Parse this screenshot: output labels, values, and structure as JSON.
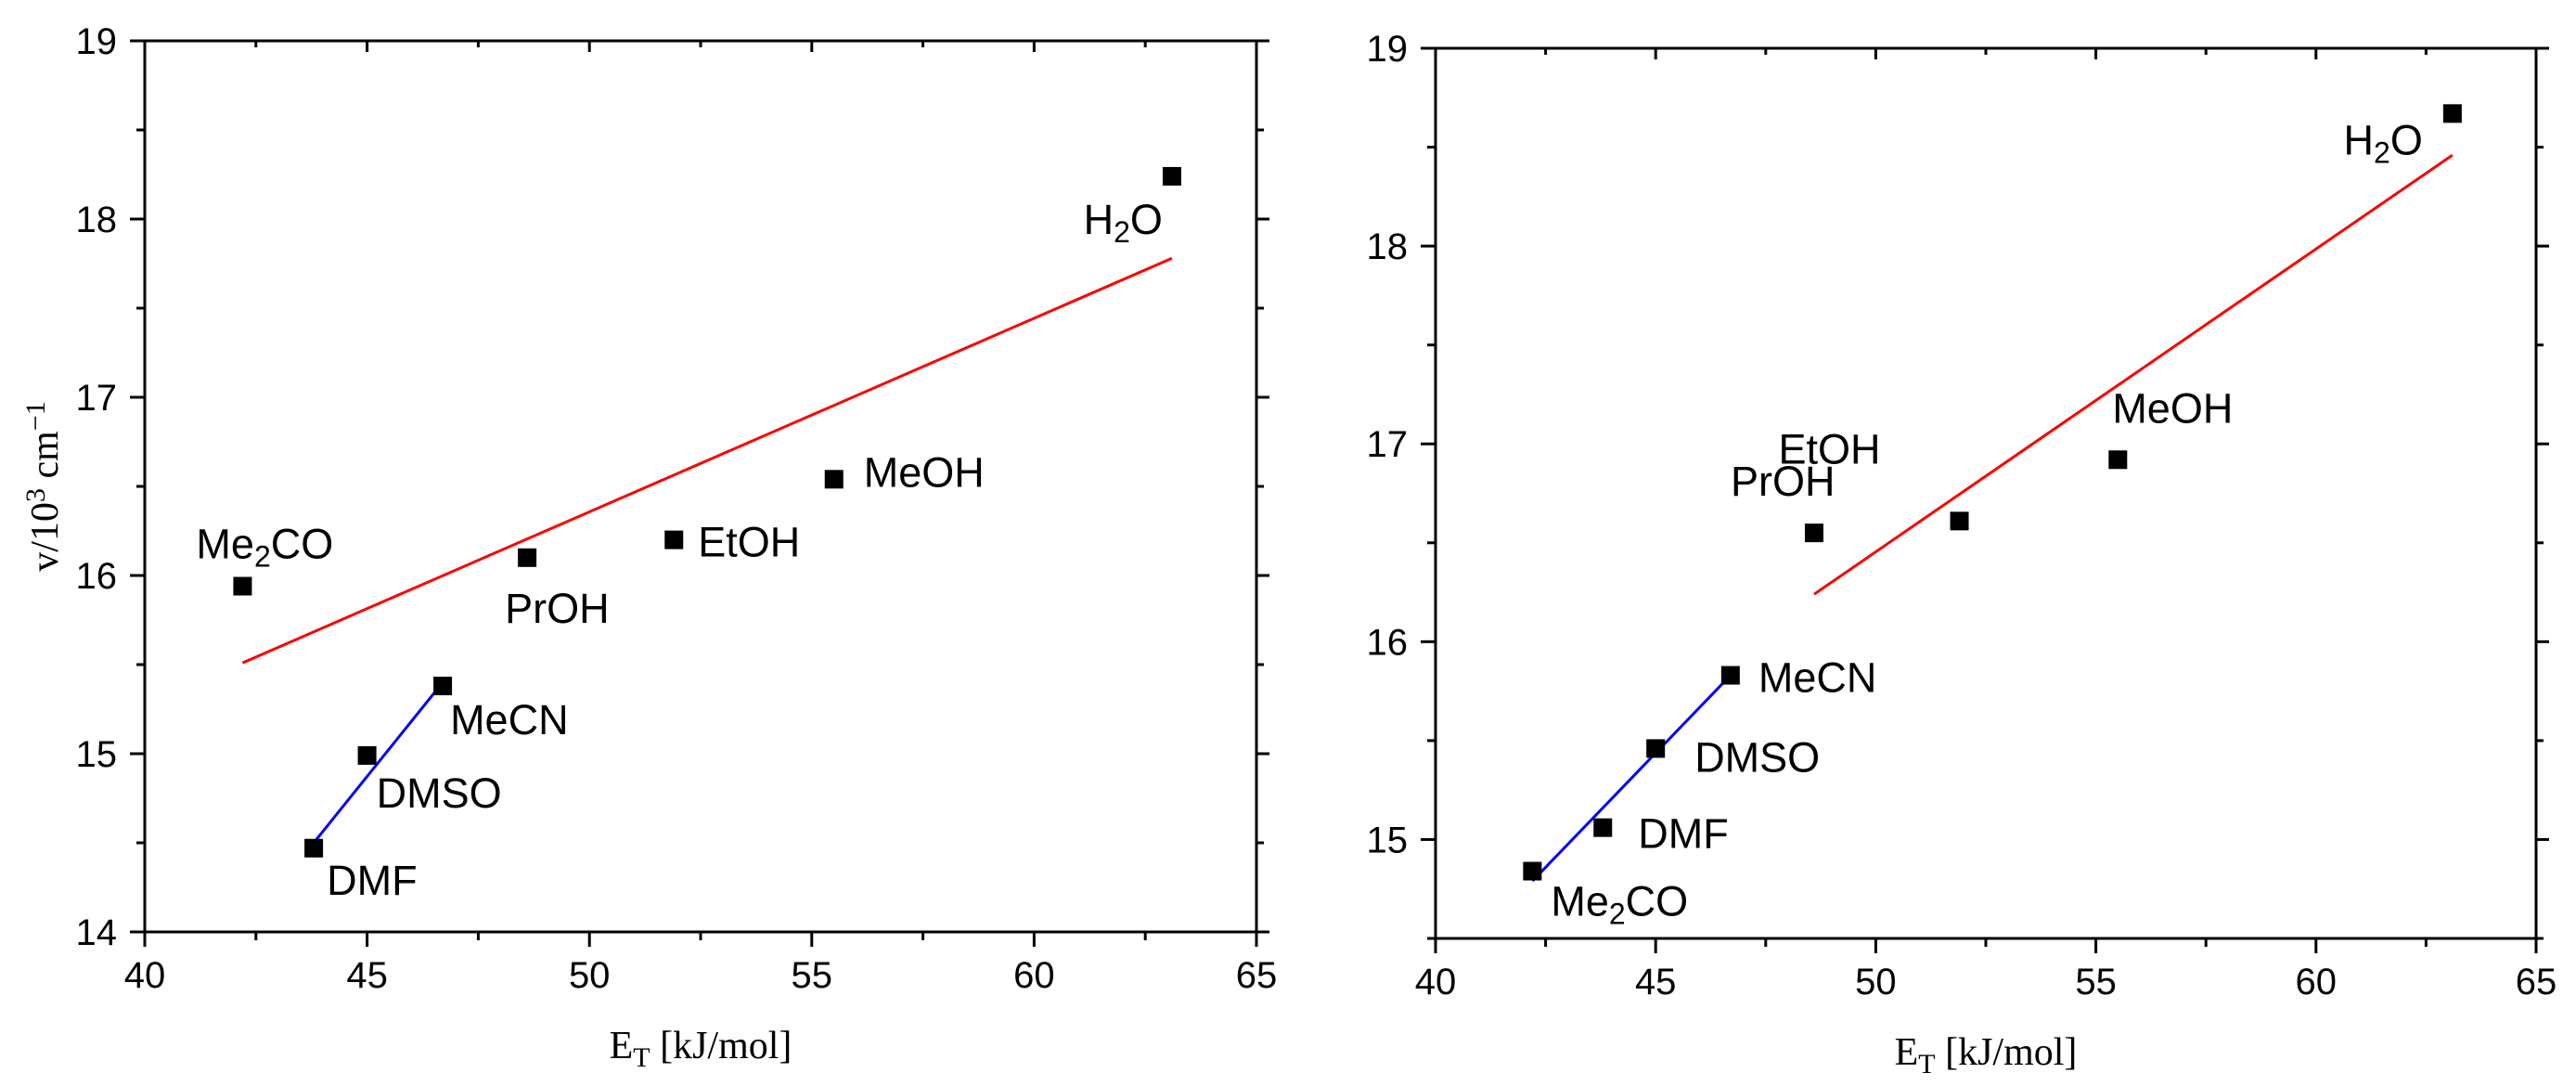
{
  "chart_data": [
    {
      "type": "scatter",
      "xlabel": "E_T [kJ/mol]",
      "ylabel": "v/10^3 cm^-1",
      "xlim": [
        40,
        65
      ],
      "ylim": [
        14,
        19
      ],
      "xticks": [
        "40",
        "45",
        "50",
        "55",
        "60",
        "65"
      ],
      "yticks": [
        "14",
        "15",
        "16",
        "17",
        "18",
        "19"
      ],
      "points": [
        {
          "label": "Me2CO",
          "x": 42.2,
          "y": 15.94,
          "label_pos": "above"
        },
        {
          "label": "DMF",
          "x": 43.8,
          "y": 14.47,
          "label_pos": "below-right"
        },
        {
          "label": "DMSO",
          "x": 45.0,
          "y": 14.99,
          "label_pos": "below-right"
        },
        {
          "label": "MeCN",
          "x": 46.7,
          "y": 15.38,
          "label_pos": "below-right"
        },
        {
          "label": "PrOH",
          "x": 48.6,
          "y": 16.1,
          "label_pos": "below"
        },
        {
          "label": "EtOH",
          "x": 51.9,
          "y": 16.2,
          "label_pos": "right"
        },
        {
          "label": "MeOH",
          "x": 55.5,
          "y": 16.54,
          "label_pos": "right"
        },
        {
          "label": "H2O",
          "x": 63.1,
          "y": 18.24,
          "label_pos": "below-left"
        }
      ],
      "fit_lines": [
        {
          "color": "#ff0000",
          "x": [
            42.2,
            63.1
          ],
          "y": [
            15.51,
            17.78
          ]
        },
        {
          "color": "#0000ff",
          "x": [
            43.8,
            46.7
          ],
          "y": [
            14.5,
            15.4
          ]
        }
      ]
    },
    {
      "type": "scatter",
      "xlabel": "E_T [kJ/mol]",
      "ylabel": "",
      "xlim": [
        40,
        65
      ],
      "ylim": [
        14.5,
        19
      ],
      "xticks": [
        "40",
        "45",
        "50",
        "55",
        "60",
        "65"
      ],
      "yticks": [
        "15",
        "16",
        "17",
        "18",
        "19"
      ],
      "points": [
        {
          "label": "Me2CO",
          "x": 42.2,
          "y": 14.84,
          "label_pos": "below-right"
        },
        {
          "label": "DMF",
          "x": 43.8,
          "y": 15.06,
          "label_pos": "right"
        },
        {
          "label": "DMSO",
          "x": 45.0,
          "y": 15.46,
          "label_pos": "below-right"
        },
        {
          "label": "MeCN",
          "x": 46.7,
          "y": 15.83,
          "label_pos": "right"
        },
        {
          "label": "PrOH",
          "x": 48.6,
          "y": 16.55,
          "label_pos": "above"
        },
        {
          "label": "EtOH",
          "x": 51.9,
          "y": 16.61,
          "label_pos": "above-left"
        },
        {
          "label": "MeOH",
          "x": 55.5,
          "y": 16.92,
          "label_pos": "above"
        },
        {
          "label": "H2O",
          "x": 63.1,
          "y": 18.67,
          "label_pos": "below-left"
        }
      ],
      "fit_lines": [
        {
          "color": "#ff0000",
          "x": [
            48.6,
            63.1
          ],
          "y": [
            16.24,
            18.46
          ]
        },
        {
          "color": "#0000ff",
          "x": [
            42.2,
            46.7
          ],
          "y": [
            14.79,
            15.83
          ]
        }
      ]
    }
  ]
}
